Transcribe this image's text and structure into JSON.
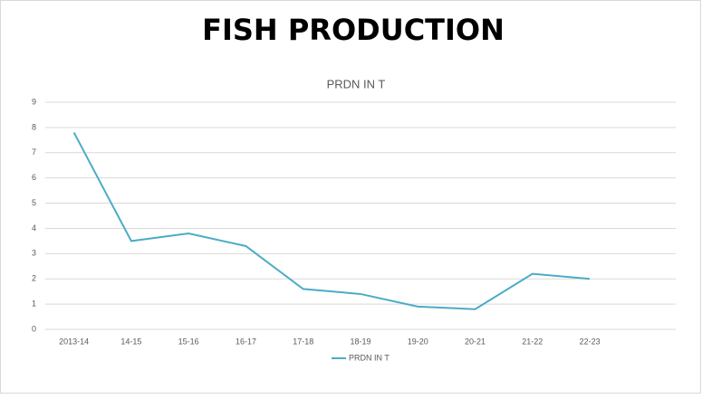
{
  "chart_data": {
    "type": "line",
    "title": "FISH PRODUCTION",
    "subtitle": "PRDN IN T",
    "categories": [
      "2013-14",
      "14-15",
      "15-16",
      "16-17",
      "17-18",
      "18-19",
      "19-20",
      "20-21",
      "21-22",
      "22-23",
      null
    ],
    "series": [
      {
        "name": "PRDN IN T",
        "color": "#4bacc6",
        "values": [
          7.8,
          3.5,
          3.8,
          3.3,
          1.6,
          1.4,
          0.9,
          0.8,
          2.2,
          2.0,
          null
        ]
      }
    ],
    "ylim": [
      0,
      9
    ],
    "yticks": [
      0,
      1,
      2,
      3,
      4,
      5,
      6,
      7,
      8,
      9
    ],
    "grid": true,
    "legend": "bottom"
  }
}
